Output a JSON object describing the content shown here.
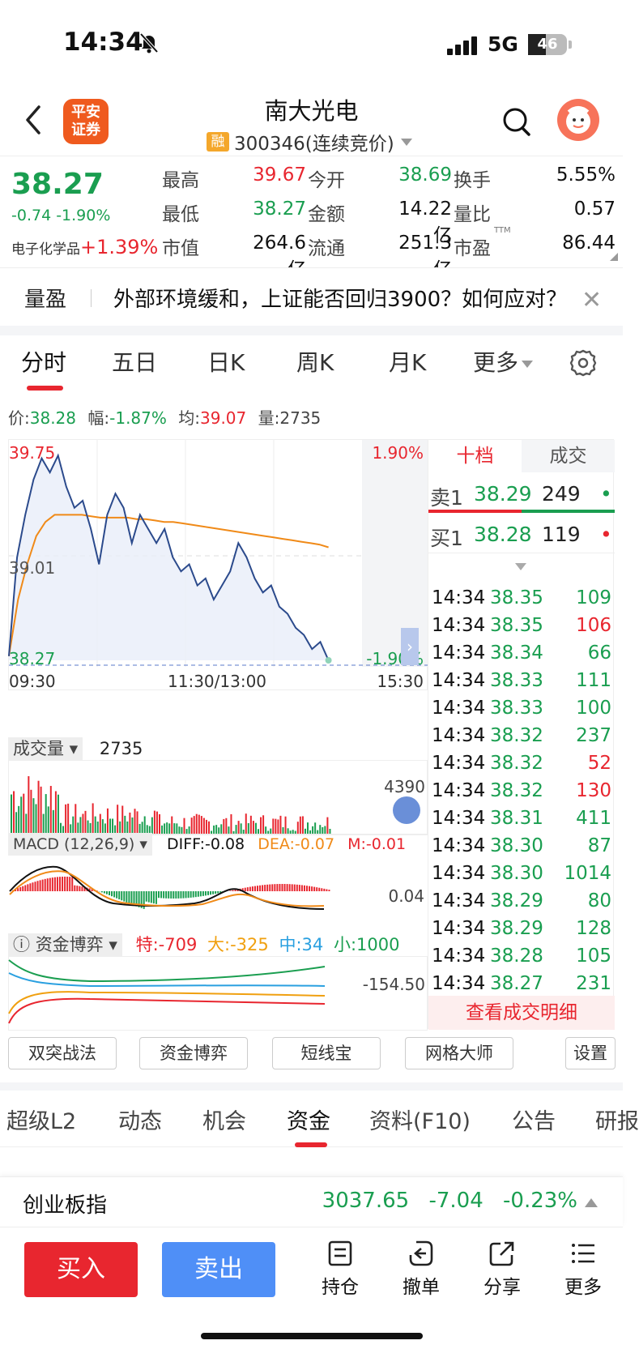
{
  "status_bar": {
    "time": "14:34",
    "network": "5G",
    "battery": "46",
    "battery_level": 0.46
  },
  "header": {
    "broker_logo": "平安\n证券",
    "title": "南大光电",
    "margin_badge": "融",
    "code_line": "300346(连续竞价)"
  },
  "quote": {
    "price": "38.27",
    "change": "-0.74 -1.90%",
    "sector_name": "电子化学品",
    "sector_change": "+1.39%",
    "fields": [
      {
        "label": "最高",
        "value": "39.67",
        "color": "red"
      },
      {
        "label": "今开",
        "value": "38.69",
        "color": "green"
      },
      {
        "label": "换手",
        "value": "5.55%",
        "color": "black"
      },
      {
        "label": "最低",
        "value": "38.27",
        "color": "green"
      },
      {
        "label": "金额",
        "value": "14.22亿",
        "color": "black"
      },
      {
        "label": "量比",
        "value": "0.57",
        "color": "black"
      },
      {
        "label": "市值",
        "value": "264.6亿",
        "color": "black"
      },
      {
        "label": "流通",
        "value": "251.3亿",
        "color": "black"
      },
      {
        "label": "市盈",
        "value": "86.44",
        "color": "black",
        "sup": "TTM"
      }
    ]
  },
  "news": {
    "tag": "量盈",
    "text": "外部环境缓和，上证能否回归3900？如何应对？"
  },
  "chart_tabs": [
    {
      "label": "分时",
      "active": true
    },
    {
      "label": "五日"
    },
    {
      "label": "日K"
    },
    {
      "label": "周K"
    },
    {
      "label": "月K"
    },
    {
      "label": "更多"
    }
  ],
  "info_line": {
    "price_label": "价:",
    "price": "38.28",
    "amp_label": "幅:",
    "amp": "-1.87%",
    "avg_label": "均:",
    "avg": "39.07",
    "vol_label": "量:",
    "vol": "2735"
  },
  "chart_data": {
    "type": "line",
    "y_left_top": "39.75",
    "y_left_mid": "39.01",
    "y_left_bottom": "38.27",
    "y_right_top": "1.90%",
    "y_right_bottom": "-1.90%",
    "x_labels": [
      "09:30",
      "11:30/13:00",
      "15:30"
    ],
    "ylim": [
      38.27,
      39.75
    ],
    "series": [
      {
        "values": [
          38.3,
          39.0,
          39.3,
          39.55,
          39.7,
          39.6,
          39.72,
          39.5,
          39.35,
          39.4,
          39.2,
          38.95,
          39.3,
          39.45,
          39.35,
          39.1,
          39.3,
          39.2,
          39.1,
          39.2,
          39.0,
          38.9,
          38.95,
          38.8,
          38.85,
          38.7,
          38.8,
          38.9,
          39.1,
          39.0,
          38.85,
          38.75,
          38.8,
          38.65,
          38.6,
          38.5,
          38.45,
          38.35,
          38.4,
          38.27
        ]
      },
      {
        "values": [
          38.3,
          38.7,
          38.95,
          39.15,
          39.25,
          39.3,
          39.3,
          39.3,
          39.3,
          39.29,
          39.28,
          39.28,
          39.28,
          39.28,
          39.27,
          39.27,
          39.26,
          39.25,
          39.25,
          39.24,
          39.23,
          39.22,
          39.21,
          39.2,
          39.19,
          39.18,
          39.17,
          39.16,
          39.15,
          39.14,
          39.13,
          39.12,
          39.11,
          39.1,
          39.09,
          39.07
        ]
      }
    ]
  },
  "volume": {
    "label": "成交量",
    "value": "2735",
    "max_label": "4390"
  },
  "macd": {
    "label": "MACD (12,26,9)",
    "diff": "DIFF:-0.08",
    "dea": "DEA:-0.07",
    "m": "M:-0.01",
    "right_label": "0.04"
  },
  "fund": {
    "label": "资金博弈",
    "te": "特:-709",
    "da": "大:-325",
    "zhong": "中:34",
    "xiao": "小:1000",
    "right_label": "-154.50"
  },
  "order_book": {
    "tab_level": "十档",
    "tab_trades": "成交",
    "ask": {
      "label": "卖1",
      "price": "38.29",
      "vol": "249"
    },
    "bid": {
      "label": "买1",
      "price": "38.28",
      "vol": "119"
    },
    "trades": [
      {
        "time": "14:34",
        "price": "38.35",
        "vol": "109",
        "dir": "green"
      },
      {
        "time": "14:34",
        "price": "38.35",
        "vol": "106",
        "dir": "red"
      },
      {
        "time": "14:34",
        "price": "38.34",
        "vol": "66",
        "dir": "green"
      },
      {
        "time": "14:34",
        "price": "38.33",
        "vol": "111",
        "dir": "green"
      },
      {
        "time": "14:34",
        "price": "38.33",
        "vol": "100",
        "dir": "green"
      },
      {
        "time": "14:34",
        "price": "38.32",
        "vol": "237",
        "dir": "green"
      },
      {
        "time": "14:34",
        "price": "38.32",
        "vol": "52",
        "dir": "red"
      },
      {
        "time": "14:34",
        "price": "38.32",
        "vol": "130",
        "dir": "red"
      },
      {
        "time": "14:34",
        "price": "38.31",
        "vol": "411",
        "dir": "green"
      },
      {
        "time": "14:34",
        "price": "38.30",
        "vol": "87",
        "dir": "green"
      },
      {
        "time": "14:34",
        "price": "38.30",
        "vol": "1014",
        "dir": "green"
      },
      {
        "time": "14:34",
        "price": "38.29",
        "vol": "80",
        "dir": "green"
      },
      {
        "time": "14:34",
        "price": "38.29",
        "vol": "128",
        "dir": "green"
      },
      {
        "time": "14:34",
        "price": "38.28",
        "vol": "105",
        "dir": "green"
      },
      {
        "time": "14:34",
        "price": "38.27",
        "vol": "231",
        "dir": "green"
      }
    ],
    "detail_link": "查看成交明细"
  },
  "tools": [
    "双突战法",
    "资金博弈",
    "短线宝",
    "网格大师",
    "设置"
  ],
  "sub_tabs": [
    {
      "label": "超级L2"
    },
    {
      "label": "动态"
    },
    {
      "label": "机会"
    },
    {
      "label": "资金",
      "active": true
    },
    {
      "label": "资料(F10)"
    },
    {
      "label": "公告"
    },
    {
      "label": "研报"
    }
  ],
  "index_bar": {
    "name": "创业板指",
    "value": "3037.65",
    "change": "-7.04",
    "pct": "-0.23%"
  },
  "bottom": {
    "buy": "买入",
    "sell": "卖出",
    "actions": [
      "持仓",
      "撤单",
      "分享",
      "更多"
    ]
  },
  "colors": {
    "up": "#e8262f",
    "down": "#1a9e50",
    "price_line": "#2b4a8c",
    "avg_line": "#f08a18",
    "accent": "#4f8ff7"
  }
}
